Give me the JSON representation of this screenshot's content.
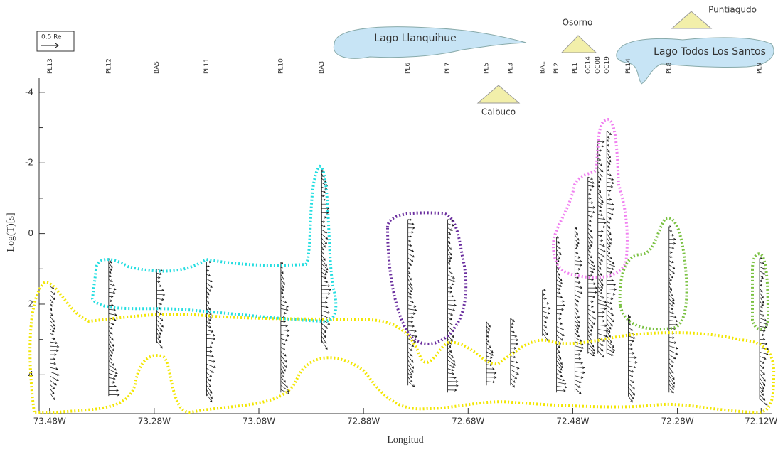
{
  "chart_data": {
    "type": "vector",
    "x_label": "Longitud",
    "y_label": "Log(T)[s]",
    "legend_label": "0.5 Re",
    "annotations": [
      "Lago Llanquihue",
      "Lago Todos Los Santos",
      "Osorno",
      "Puntiagudo",
      "Calbuco"
    ],
    "stations": [
      "PL13",
      "PL12",
      "BA5",
      "PL11",
      "PL10",
      "BA3",
      "PL6",
      "PL7",
      "PL5",
      "PL3",
      "BA1",
      "PL2",
      "PL1",
      "OC14",
      "OC08",
      "OC19",
      "PL14",
      "PL8",
      "PL9"
    ],
    "x": [
      -73.479,
      -73.367,
      -73.275,
      -73.18,
      -73.038,
      -72.96,
      -72.795,
      -72.719,
      -72.645,
      -72.599,
      -72.538,
      -72.511,
      -72.476,
      -72.451,
      -72.432,
      -72.415,
      -72.374,
      -72.296,
      -72.123
    ],
    "period_min": [
      1.5,
      0.7,
      1.0,
      0.8,
      0.8,
      -1.8,
      -0.4,
      -0.4,
      2.5,
      2.4,
      1.6,
      0.1,
      -0.2,
      -1.6,
      -2.6,
      -2.9,
      2.3,
      -0.2,
      0.7
    ],
    "period_max": [
      4.6,
      4.6,
      3.1,
      4.6,
      4.5,
      3.1,
      4.3,
      4.5,
      4.3,
      4.3,
      2.9,
      4.5,
      4.5,
      3.4,
      3.4,
      3.4,
      4.6,
      4.5,
      4.7
    ],
    "color": "#111111",
    "xlim": [
      -73.5,
      -72.1
    ],
    "xticks": [
      {
        "value": -73.48,
        "label": "73.48W"
      },
      {
        "value": -73.28,
        "label": "73.28W"
      },
      {
        "value": -73.08,
        "label": "73.08W"
      },
      {
        "value": -72.88,
        "label": "72.88W"
      },
      {
        "value": -72.68,
        "label": "72.68W"
      },
      {
        "value": -72.48,
        "label": "72.48W"
      },
      {
        "value": -72.28,
        "label": "72.28W"
      },
      {
        "value": -72.12,
        "label": "72.12W"
      }
    ],
    "ylim": [
      -4.4,
      5.1
    ],
    "y_inverted": true,
    "yticks": [
      -4,
      -2,
      0,
      2,
      4
    ]
  }
}
